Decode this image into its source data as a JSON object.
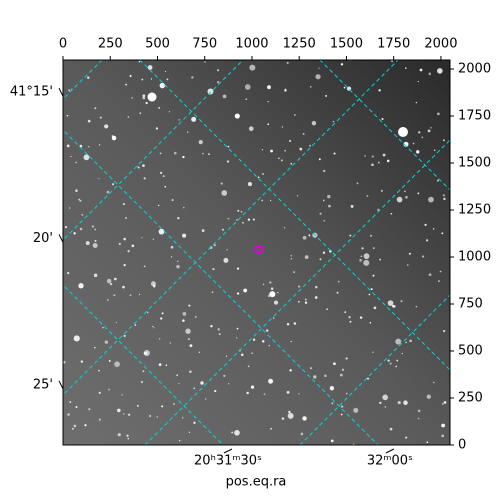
{
  "chart_data": {
    "type": "image",
    "xlabel": "pos.eq.ra",
    "xlim": [
      0,
      2048
    ],
    "ylim": [
      0,
      2048
    ],
    "xticks": [
      0,
      250,
      500,
      750,
      1000,
      1250,
      1500,
      1750,
      2000
    ],
    "yticks": [
      0,
      250,
      500,
      750,
      1000,
      1250,
      1500,
      1750,
      2000
    ],
    "dec_ticks": [
      {
        "value": 1877,
        "label": "41°15'"
      },
      {
        "value": 1099,
        "label": "20'"
      },
      {
        "value": 320,
        "label": "25'"
      }
    ],
    "ra_ticks": [
      {
        "value": 873,
        "label": "20ʰ31ᵐ30ˢ"
      },
      {
        "value": 1730,
        "label": "32ᵐ00ˢ"
      }
    ],
    "markers": [
      {
        "x": 1037,
        "y": 1040,
        "color": "#e000e0"
      }
    ],
    "grid_color": "#00d8d8"
  }
}
